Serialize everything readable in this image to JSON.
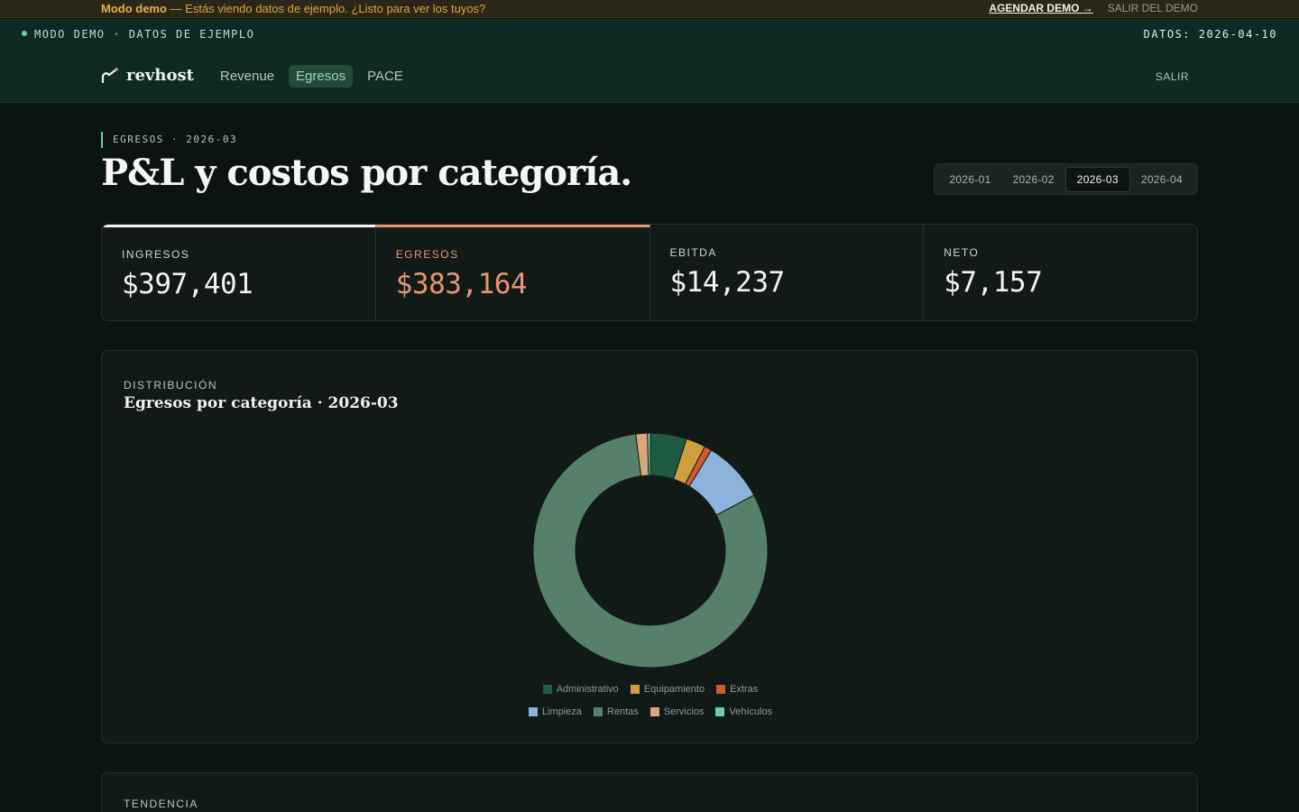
{
  "demo_bar": {
    "title": "Modo demo",
    "message": " — Estás viendo datos de ejemplo. ¿Listo para ver los tuyos?",
    "book_label": "AGENDAR DEMO →",
    "exit_label": "SALIR DEL DEMO"
  },
  "top": {
    "mode_label": "MODO DEMO · DATOS DE EJEMPLO",
    "data_date": "DATOS: 2026-04-10"
  },
  "brand": {
    "name": "revhost",
    "icon": "chart-trend-icon"
  },
  "nav": {
    "tabs": [
      {
        "label": "Revenue",
        "active": false
      },
      {
        "label": "Egresos",
        "active": true
      },
      {
        "label": "PACE",
        "active": false
      }
    ],
    "logout": "SALIR"
  },
  "page": {
    "breadcrumb": "EGRESOS · 2026-03",
    "title": "P&L y costos por categoría."
  },
  "months": [
    {
      "label": "2026-01",
      "active": false
    },
    {
      "label": "2026-02",
      "active": false
    },
    {
      "label": "2026-03",
      "active": true
    },
    {
      "label": "2026-04",
      "active": false
    }
  ],
  "kpis": [
    {
      "label": "INGRESOS",
      "value": "$397,401"
    },
    {
      "label": "EGRESOS",
      "value": "$383,164"
    },
    {
      "label": "EBITDA",
      "value": "$14,237"
    },
    {
      "label": "NETO",
      "value": "$7,157"
    }
  ],
  "distribution": {
    "eyebrow": "DISTRIBUCIÓN",
    "title": "Egresos por categoría · 2026-03"
  },
  "trend": {
    "eyebrow": "TENDENCIA"
  },
  "chart_data": {
    "type": "pie",
    "title": "Egresos por categoría · 2026-03",
    "categories": [
      "Administrativo",
      "Equipamiento",
      "Extras",
      "Limpieza",
      "Rentas",
      "Servicios",
      "Vehículos"
    ],
    "values": [
      5.0,
      2.7,
      1.0,
      8.5,
      80.8,
      1.6,
      0.4
    ],
    "unit": "%",
    "colors": [
      "#1f5a42",
      "#cf9e3f",
      "#cf5a34",
      "#8db3dd",
      "#56806a",
      "#d9a77e",
      "#6fcfa0"
    ],
    "legend": "bottom"
  }
}
